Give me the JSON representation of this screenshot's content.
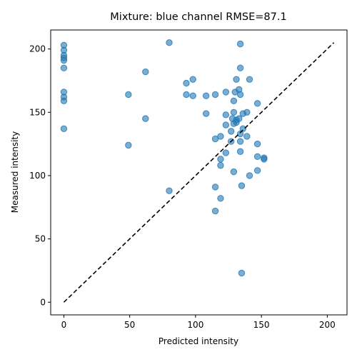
{
  "chart_data": {
    "type": "scatter",
    "title": "Mixture: blue channel RMSE=87.1",
    "xlabel": "Predicted intensity",
    "ylabel": "Measured intensity",
    "xlim": [
      -10,
      215
    ],
    "ylim": [
      -10,
      215
    ],
    "xticks": [
      0,
      50,
      100,
      150,
      200
    ],
    "yticks": [
      0,
      50,
      100,
      150,
      200
    ],
    "grid": false,
    "point_color": "#1f77b4",
    "reference_line": {
      "style": "dashed",
      "color": "#000000",
      "from": [
        0,
        0
      ],
      "to": [
        205,
        205
      ]
    },
    "points": [
      [
        0,
        203
      ],
      [
        0,
        199
      ],
      [
        0,
        195
      ],
      [
        0,
        193
      ],
      [
        0,
        191
      ],
      [
        0,
        185
      ],
      [
        0,
        166
      ],
      [
        0,
        162
      ],
      [
        0,
        159
      ],
      [
        0,
        137
      ],
      [
        49,
        164
      ],
      [
        49,
        124
      ],
      [
        62,
        182
      ],
      [
        62,
        145
      ],
      [
        80,
        205
      ],
      [
        80,
        88
      ],
      [
        93,
        173
      ],
      [
        93,
        164
      ],
      [
        98,
        176
      ],
      [
        98,
        163
      ],
      [
        108,
        163
      ],
      [
        108,
        149
      ],
      [
        115,
        164
      ],
      [
        115,
        129
      ],
      [
        115,
        91
      ],
      [
        115,
        72
      ],
      [
        119,
        131
      ],
      [
        119,
        113
      ],
      [
        119,
        108
      ],
      [
        119,
        82
      ],
      [
        123,
        166
      ],
      [
        123,
        148
      ],
      [
        123,
        140
      ],
      [
        123,
        118
      ],
      [
        127,
        135
      ],
      [
        127,
        127
      ],
      [
        128,
        145
      ],
      [
        129,
        159
      ],
      [
        129,
        150
      ],
      [
        129,
        141
      ],
      [
        129,
        103
      ],
      [
        130,
        166
      ],
      [
        131,
        176
      ],
      [
        131,
        144
      ],
      [
        131,
        142
      ],
      [
        133,
        168
      ],
      [
        133,
        145
      ],
      [
        134,
        204
      ],
      [
        134,
        185
      ],
      [
        134,
        164
      ],
      [
        134,
        133
      ],
      [
        134,
        127
      ],
      [
        134,
        119
      ],
      [
        135,
        92
      ],
      [
        135,
        23
      ],
      [
        136,
        149
      ],
      [
        136,
        137
      ],
      [
        139,
        150
      ],
      [
        139,
        131
      ],
      [
        141,
        176
      ],
      [
        141,
        100
      ],
      [
        147,
        157
      ],
      [
        147,
        125
      ],
      [
        147,
        115
      ],
      [
        147,
        104
      ],
      [
        152,
        114
      ],
      [
        152,
        113
      ]
    ]
  }
}
